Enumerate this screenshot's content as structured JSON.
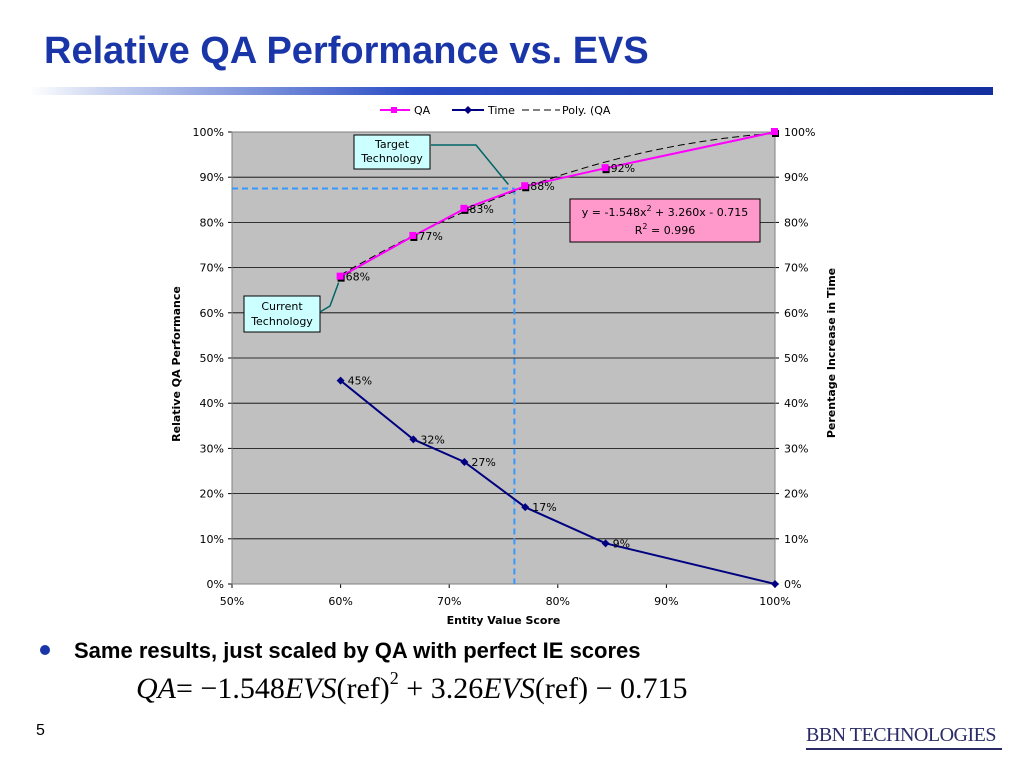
{
  "slide": {
    "title": "Relative QA Performance vs. EVS",
    "bullet": "Same results, just scaled by QA with perfect IE scores",
    "formula": {
      "lhs": "QA",
      "part1": "= −1.548",
      "var1": "EVS",
      "ref1": "(ref)",
      "exp": "2",
      "part2": " + 3.26",
      "var2": "EVS",
      "ref2": "(ref)",
      "part3": " − 0.715"
    },
    "page_number": "5",
    "logo": {
      "bbn": "BBN",
      "tech": "TECHNOLOGIES"
    },
    "colors": {
      "title": "#1a35a8",
      "qa_series": "#ff00ff",
      "time_series": "#000080",
      "plot_bg": "#c0c0c0",
      "callout_fill": "#ccffff",
      "equation_fill": "#ff99cc",
      "guide_line": "#3399ff"
    }
  },
  "chart_data": {
    "type": "line",
    "xlabel": "Entity Value Score",
    "ylabel_left": "Relative QA Performance",
    "ylabel_right": "Perentage Increase in Time",
    "xlim": [
      0.5,
      1.0
    ],
    "ylim": [
      0,
      1.0
    ],
    "x_ticks": [
      "50%",
      "60%",
      "70%",
      "80%",
      "90%",
      "100%"
    ],
    "y_ticks": [
      "0%",
      "10%",
      "20%",
      "30%",
      "40%",
      "50%",
      "60%",
      "70%",
      "80%",
      "90%",
      "100%"
    ],
    "grid": "horizontal",
    "legend": {
      "position": "top",
      "entries": [
        "QA",
        "Time",
        "Poly. (QA"
      ]
    },
    "series": [
      {
        "name": "QA",
        "x": [
          0.6,
          0.667,
          0.714,
          0.77,
          0.844,
          1.0
        ],
        "values": [
          0.68,
          0.77,
          0.83,
          0.88,
          0.92,
          1.0
        ],
        "labels": [
          "68%",
          "77%",
          "83%",
          "88%",
          "92%",
          "100%"
        ]
      },
      {
        "name": "Time",
        "x": [
          0.6,
          0.667,
          0.714,
          0.77,
          0.844,
          1.0
        ],
        "values": [
          0.45,
          0.32,
          0.27,
          0.17,
          0.09,
          0.0
        ],
        "labels": [
          "45%",
          "32%",
          "27%",
          "17%",
          "9%",
          ""
        ]
      },
      {
        "name": "Poly. (QA",
        "equation": [
          -1.548,
          3.26,
          -0.715
        ]
      }
    ],
    "equation_box": {
      "line1_a": "y = -1.548x",
      "line1_sup": "2",
      "line1_b": " + 3.260x - 0.715",
      "line2_a": "R",
      "line2_sup": "2",
      "line2_b": " = 0.996"
    },
    "annotations": [
      {
        "text": [
          "Target",
          "Technology"
        ],
        "target": {
          "x": 0.76,
          "y": 0.875
        }
      },
      {
        "text": [
          "Current",
          "Technology"
        ],
        "target": {
          "x": 0.6,
          "y": 0.68
        }
      }
    ],
    "guide": {
      "x": 0.76,
      "y": 0.875
    }
  }
}
